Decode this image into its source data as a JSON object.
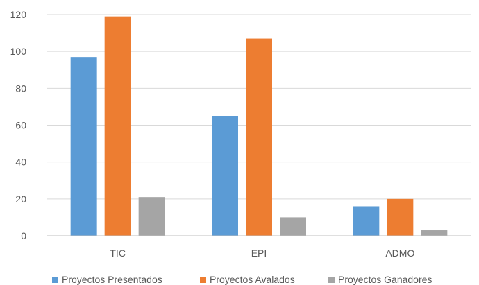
{
  "chart_data": {
    "type": "bar",
    "categories": [
      "TIC",
      "EPI",
      "ADMO"
    ],
    "series": [
      {
        "name": "Proyectos Presentados",
        "values": [
          97,
          65,
          16
        ],
        "color": "#5b9bd5"
      },
      {
        "name": "Proyectos Avalados",
        "values": [
          119,
          107,
          20
        ],
        "color": "#ed7d31"
      },
      {
        "name": "Proyectos Ganadores",
        "values": [
          21,
          10,
          3
        ],
        "color": "#a5a5a5"
      }
    ],
    "ylim": [
      0,
      120
    ],
    "yticks": [
      "0",
      "20",
      "40",
      "60",
      "80",
      "100",
      "120"
    ],
    "grid": true,
    "legend_position": "bottom"
  }
}
